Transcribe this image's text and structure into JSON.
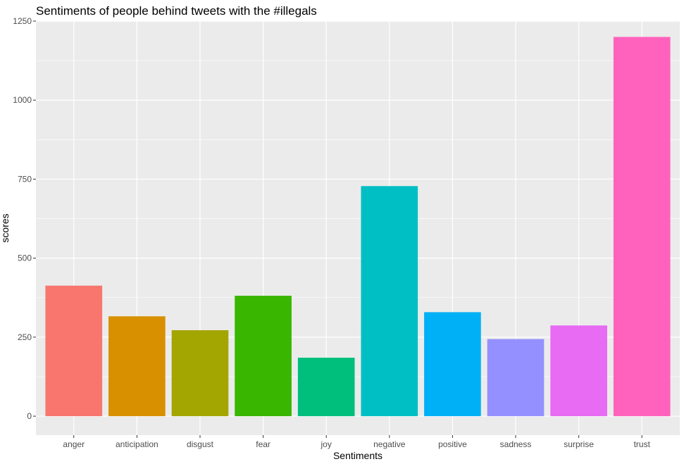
{
  "chart_data": {
    "type": "bar",
    "title": "Sentiments of people behind tweets with the #illegals",
    "xlabel": "Sentiments",
    "ylabel": "scores",
    "categories": [
      "anger",
      "anticipation",
      "disgust",
      "fear",
      "joy",
      "negative",
      "positive",
      "sadness",
      "surprise",
      "trust"
    ],
    "values": [
      413,
      316,
      272,
      381,
      185,
      728,
      329,
      244,
      287,
      1200
    ],
    "colors": [
      "#F8766D",
      "#D89000",
      "#A3A500",
      "#39B600",
      "#00BF7D",
      "#00BFC4",
      "#00B0F6",
      "#9590FF",
      "#E76BF3",
      "#FF62BC"
    ],
    "ylim": [
      -60,
      1250
    ],
    "yticks": [
      0,
      250,
      500,
      750,
      1000,
      1250
    ],
    "ytick_labels": [
      "0",
      "250",
      "500",
      "750",
      "1000",
      "1250"
    ],
    "grid": true,
    "legend": "none",
    "panel_background": "#EBEBEB"
  }
}
